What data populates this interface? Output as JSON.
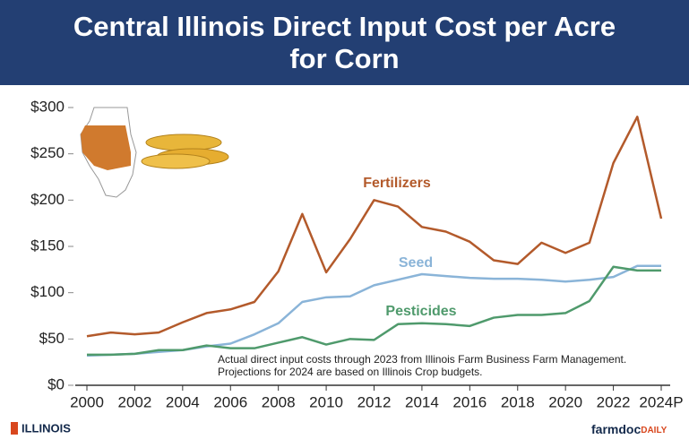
{
  "chart_data": {
    "type": "line",
    "title": "Central Illinois Direct Input Cost per Acre for Corn",
    "x": [
      2000,
      2001,
      2002,
      2003,
      2004,
      2005,
      2006,
      2007,
      2008,
      2009,
      2010,
      2011,
      2012,
      2013,
      2014,
      2015,
      2016,
      2017,
      2018,
      2019,
      2020,
      2021,
      2022,
      2023,
      2024
    ],
    "series": [
      {
        "name": "Fertilizers",
        "color": "#b35a2b",
        "values": [
          53,
          57,
          55,
          57,
          68,
          78,
          82,
          90,
          123,
          185,
          122,
          158,
          200,
          193,
          171,
          166,
          155,
          135,
          131,
          154,
          143,
          154,
          240,
          290,
          180
        ]
      },
      {
        "name": "Seed",
        "color": "#8ab4d8",
        "values": [
          32,
          33,
          34,
          36,
          38,
          42,
          45,
          55,
          67,
          90,
          95,
          96,
          108,
          114,
          120,
          118,
          116,
          115,
          115,
          114,
          112,
          114,
          117,
          129,
          129
        ]
      },
      {
        "name": "Pesticides",
        "color": "#4f9a6c",
        "values": [
          33,
          33,
          34,
          38,
          38,
          43,
          40,
          40,
          46,
          52,
          44,
          50,
          49,
          66,
          67,
          66,
          64,
          73,
          76,
          76,
          78,
          91,
          128,
          124,
          124
        ]
      }
    ],
    "xlim": [
      2000,
      2024
    ],
    "xticks": [
      2000,
      2002,
      2004,
      2006,
      2008,
      2010,
      2012,
      2014,
      2016,
      2018,
      2020,
      2022,
      {
        "value": 2024,
        "label": "2024P"
      }
    ],
    "ylim": [
      0,
      300
    ],
    "yticks": [
      {
        "value": 0,
        "label": "$0"
      },
      {
        "value": 50,
        "label": "$50"
      },
      {
        "value": 100,
        "label": "$100"
      },
      {
        "value": 150,
        "label": "$150"
      },
      {
        "value": 200,
        "label": "$200"
      },
      {
        "value": 250,
        "label": "$250"
      },
      {
        "value": 300,
        "label": "$300"
      }
    ],
    "grid": false,
    "notes": [
      "Actual direct input costs through 2023 from Illinois Farm Business Farm Management.",
      "Projections for 2024 are based on Illinois Crop budgets."
    ]
  },
  "footer": {
    "left": "ILLINOIS",
    "right_main": "farmdoc",
    "right_sub": "DAILY"
  }
}
